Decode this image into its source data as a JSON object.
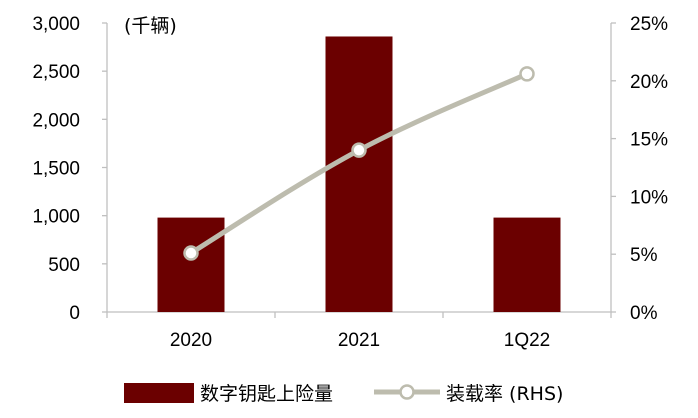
{
  "chart_data": {
    "type": "bar",
    "categories": [
      "2020",
      "2021",
      "1Q22"
    ],
    "left_unit_label": "(千辆)",
    "left_axis": {
      "ticks": [
        "0",
        "500",
        "1,000",
        "1,500",
        "2,000",
        "2,500",
        "3,000"
      ],
      "ylim": [
        0,
        3000
      ]
    },
    "right_axis": {
      "ticks": [
        "0%",
        "5%",
        "10%",
        "15%",
        "20%",
        "25%"
      ],
      "ylim": [
        0,
        25
      ]
    },
    "series": [
      {
        "name": "数字钥匙上险量",
        "kind": "bar",
        "axis": "left",
        "values": [
          980,
          2860,
          980
        ],
        "color": "#6b0000"
      },
      {
        "name": "装载率 (RHS)",
        "kind": "line",
        "axis": "right",
        "values": [
          5.1,
          14.0,
          20.6
        ],
        "color": "#bdbcae"
      }
    ],
    "grid": false,
    "legend_position": "bottom"
  }
}
